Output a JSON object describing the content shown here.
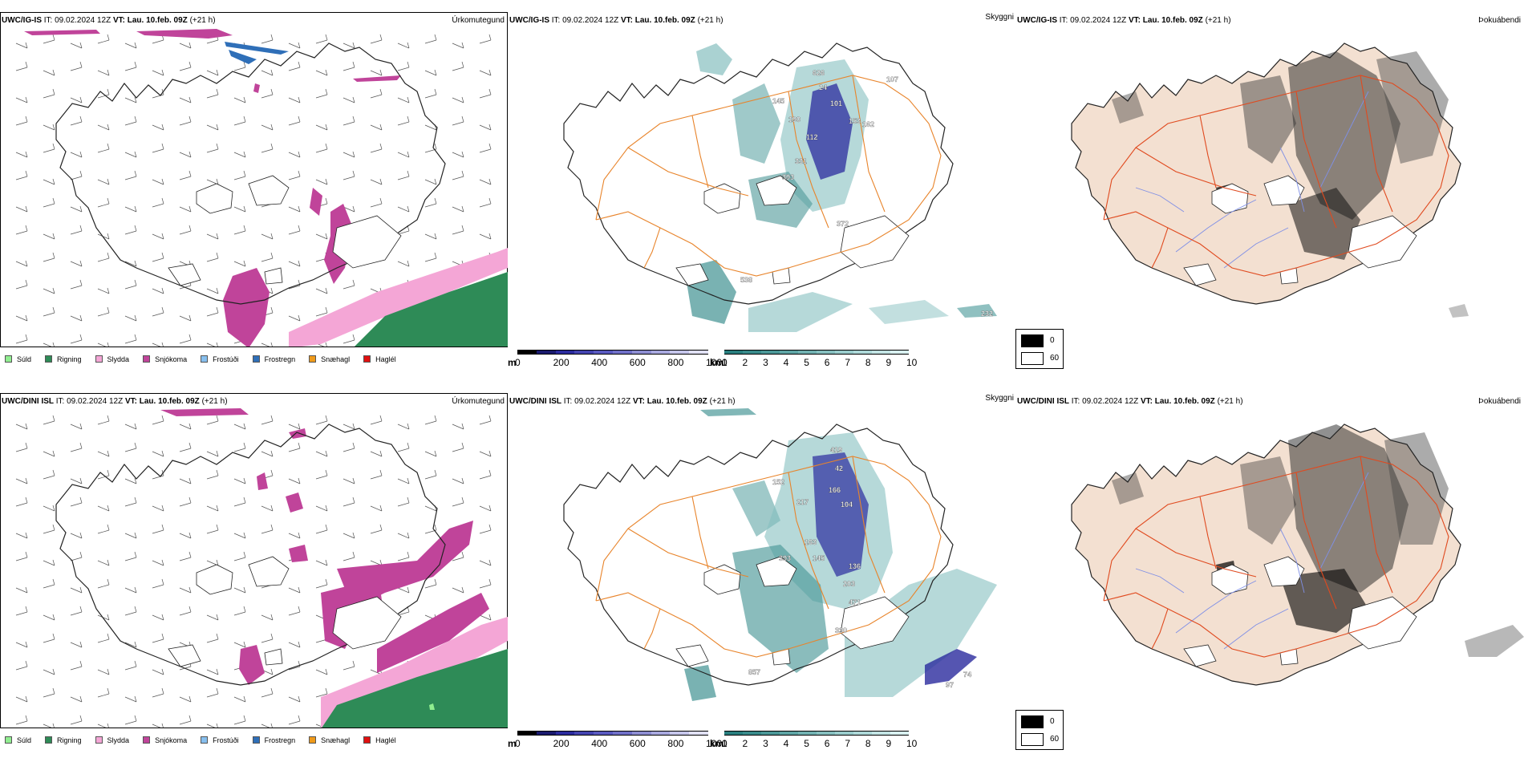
{
  "rows": [
    {
      "model": "UWC/IG-IS",
      "init": "IT: 09.02.2024 12Z",
      "valid_prefix": "VT:",
      "valid_time": "Lau. 10.feb. 09Z",
      "lead": "(+21 h)"
    },
    {
      "model": "UWC/DINI ISL",
      "init": "IT: 09.02.2024 12Z",
      "valid_prefix": "VT:",
      "valid_time": "Lau. 10.feb. 09Z",
      "lead": "(+21 h)"
    }
  ],
  "panel_titles": {
    "precip": "Úrkomutegund",
    "visibility": "Skyggni",
    "fog": "Þokuábendi"
  },
  "precip_legend": [
    {
      "label": "Súld",
      "color": "#90ee90"
    },
    {
      "label": "Rigning",
      "color": "#2e8b57"
    },
    {
      "label": "Slydda",
      "color": "#f4a6d6"
    },
    {
      "label": "Snjókoma",
      "color": "#c0449a"
    },
    {
      "label": "Frostúði",
      "color": "#87bfee"
    },
    {
      "label": "Frostregn",
      "color": "#2f6fb8"
    },
    {
      "label": "Snæhagl",
      "color": "#ef9a1a"
    },
    {
      "label": "Haglél",
      "color": "#e01010"
    }
  ],
  "visibility_scale": {
    "m_unit": "m",
    "m_ticks": [
      "0",
      "200",
      "400",
      "600",
      "800",
      "1000"
    ],
    "km_unit": "km",
    "km_ticks": [
      "1",
      "2",
      "3",
      "4",
      "5",
      "6",
      "7",
      "8",
      "9",
      "10"
    ],
    "m_colors": [
      "#000000",
      "#1a1a6e",
      "#2b2b9e",
      "#4444b0",
      "#5a5ac0",
      "#7070c8",
      "#8e8ed2",
      "#a9a9df",
      "#c5c5ea",
      "#e0e0f4"
    ],
    "km_colors": [
      "#2a7f7f",
      "#3a8b8b",
      "#4c9898",
      "#5fa5a5",
      "#72b2b2",
      "#86bfbf",
      "#9acccc",
      "#aed8d8",
      "#c3e4e4",
      "#d8f0f0"
    ]
  },
  "fog_legend": {
    "high": "0",
    "low": "60"
  },
  "visibility_labels": [
    [
      "626",
      "24",
      "101",
      "145",
      "190",
      "112",
      "331",
      "393",
      "372",
      "538",
      "232",
      "107",
      "162",
      "153"
    ],
    [
      "419",
      "42",
      "166",
      "152",
      "217",
      "104",
      "163",
      "393",
      "145",
      "136",
      "203",
      "471",
      "330",
      "857",
      "97",
      "74"
    ]
  ],
  "colors": {
    "land_fog": "#f3e0d1",
    "roads_vis": "#e8842b",
    "roads_fog": "#e04a1f",
    "rivers": "#7f8fe6",
    "snow": "#c0449a",
    "sleet": "#f4a6d6",
    "rain": "#2e8b57",
    "freezing_rain": "#2f6fb8",
    "vis_low": "#2b2b9e",
    "vis_mid": "#4c9898"
  }
}
